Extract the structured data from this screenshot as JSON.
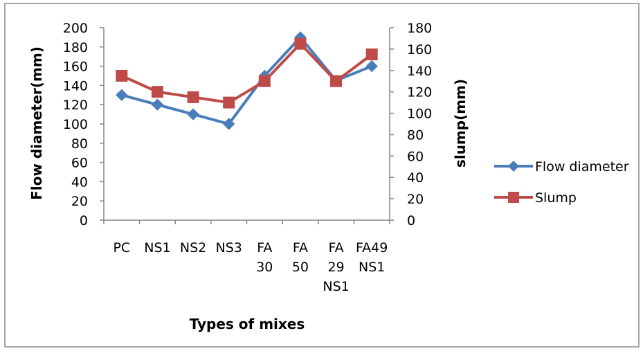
{
  "chart_data": {
    "type": "line",
    "categories": [
      [
        "PC"
      ],
      [
        "NS1"
      ],
      [
        "NS2"
      ],
      [
        "NS3"
      ],
      [
        "FA",
        "30"
      ],
      [
        "FA",
        "50"
      ],
      [
        "FA",
        "29",
        "NS1"
      ],
      [
        "FA49",
        "NS1"
      ]
    ],
    "series": [
      {
        "name": "Flow diameter",
        "axis": "left",
        "color": "#4a7ebb",
        "marker": "diamond",
        "values": [
          130,
          120,
          110,
          100,
          150,
          190,
          145,
          160
        ]
      },
      {
        "name": "Slump",
        "axis": "right",
        "color": "#be4b48",
        "marker": "square",
        "values": [
          135,
          120,
          115,
          110,
          130,
          165,
          130,
          155
        ]
      }
    ],
    "xlabel": "Types of mixes",
    "ylabel_left": "Flow diameter(mm)",
    "ylabel_right": "slump(mm)",
    "ylim_left": [
      0,
      200
    ],
    "yticks_left": [
      0,
      20,
      40,
      60,
      80,
      100,
      120,
      140,
      160,
      180,
      200
    ],
    "ylim_right": [
      0,
      180
    ],
    "yticks_right": [
      0,
      20,
      40,
      60,
      80,
      100,
      120,
      140,
      160,
      180
    ],
    "grid": false,
    "legend": "right"
  }
}
